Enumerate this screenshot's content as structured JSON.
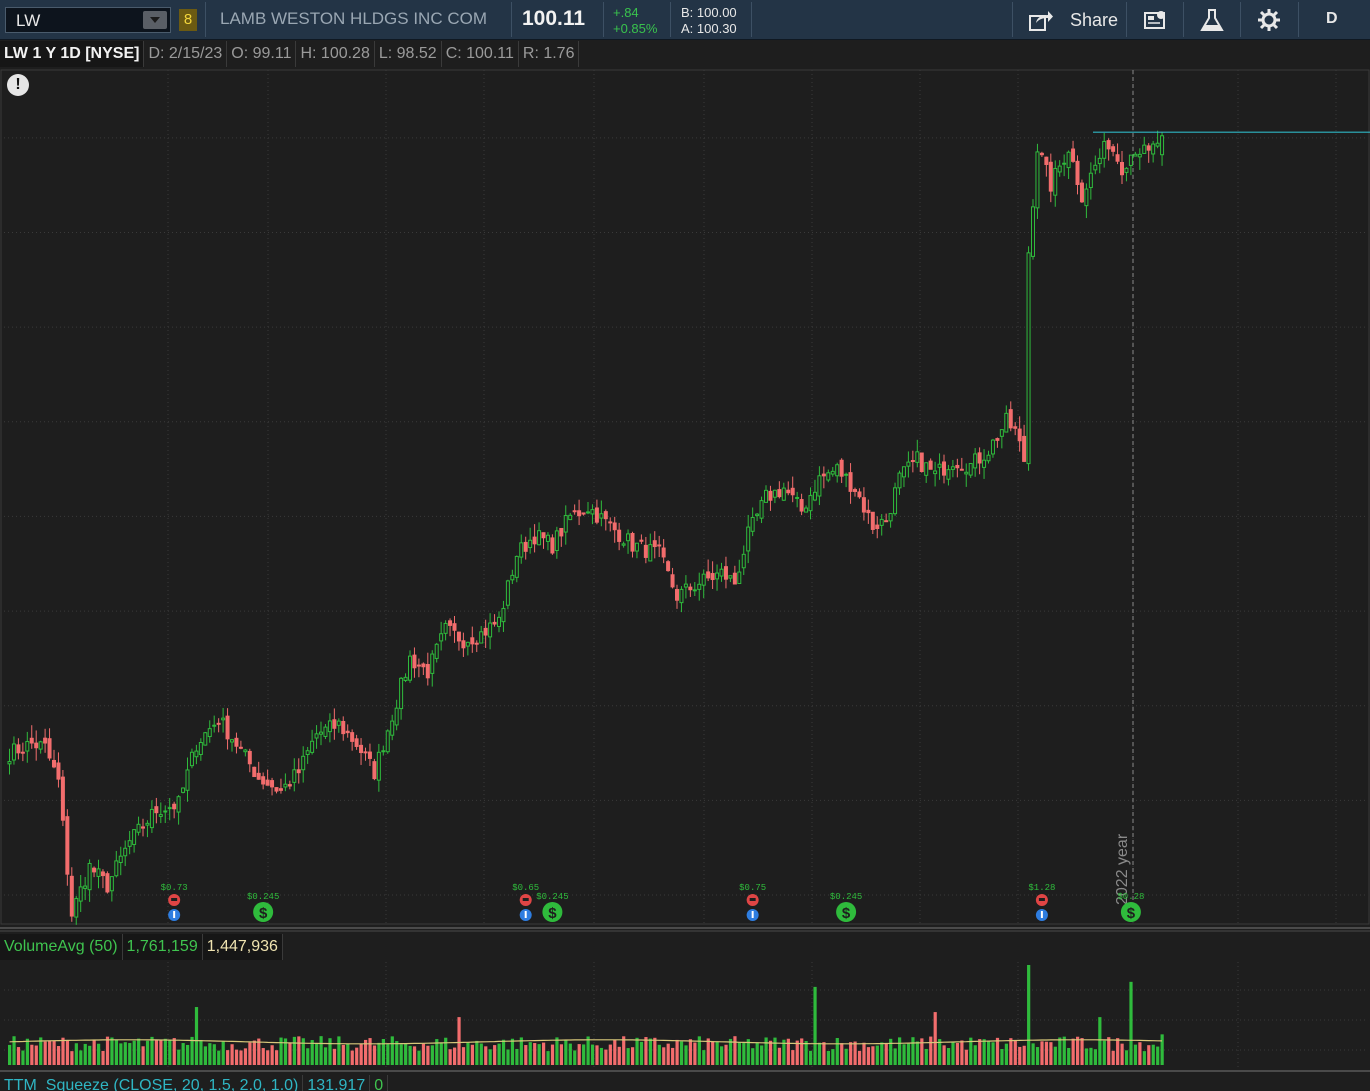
{
  "toolbar": {
    "symbol": "LW",
    "link_badge": "8",
    "company": "LAMB WESTON HLDGS INC COM",
    "last": "100.11",
    "change": "+.84",
    "change_pct": "+0.85%",
    "bid": "B: 100.00",
    "ask": "A: 100.30",
    "share_label": "Share",
    "right_label": "D",
    "icons": [
      "share-icon",
      "news-icon",
      "flask-icon",
      "gear-icon"
    ]
  },
  "info": {
    "title": "LW 1 Y 1D [NYSE]",
    "date": "D: 2/15/23",
    "open": "O: 99.11",
    "high": "H: 100.28",
    "low": "L: 98.52",
    "close": "C: 100.11",
    "range": "R: 1.76"
  },
  "colors": {
    "up": "#2fbb3c",
    "down": "#f26d6d",
    "bg": "#1e1e1e",
    "grid": "#3a3a3a",
    "hline": "#2fb6c4",
    "volavg": "#d8c87a"
  },
  "volume_study": {
    "name": "VolumeAvg (50)",
    "volume": "1,761,159",
    "avg": "1,447,936"
  },
  "ttm_study": {
    "name": "TTM_Squeeze (CLOSE, 20, 1.5, 2.0, 1.0)",
    "value": "131.917",
    "extra": "0"
  },
  "chart_data": {
    "type": "candlestick",
    "period": "1 Y",
    "interval": "1D",
    "year_marker": "2022 year",
    "horizontal_line": 100.3,
    "last_close": 100.11,
    "ylim": [
      60,
      102
    ],
    "price_key_points": [
      {
        "day": 0,
        "close": 67.5
      },
      {
        "day": 5,
        "close": 68.0
      },
      {
        "day": 8,
        "close": 67.8
      },
      {
        "day": 11,
        "close": 66.0
      },
      {
        "day": 14,
        "close": 59.0
      },
      {
        "day": 18,
        "close": 61.5
      },
      {
        "day": 22,
        "close": 60.5
      },
      {
        "day": 27,
        "close": 62.8
      },
      {
        "day": 33,
        "close": 64.5
      },
      {
        "day": 38,
        "close": 64.8
      },
      {
        "day": 42,
        "close": 68.0
      },
      {
        "day": 47,
        "close": 69.3
      },
      {
        "day": 51,
        "close": 68.0
      },
      {
        "day": 56,
        "close": 66.2
      },
      {
        "day": 61,
        "close": 65.5
      },
      {
        "day": 65,
        "close": 66.5
      },
      {
        "day": 69,
        "close": 68.5
      },
      {
        "day": 74,
        "close": 69.0
      },
      {
        "day": 78,
        "close": 68.0
      },
      {
        "day": 82,
        "close": 66.5
      },
      {
        "day": 86,
        "close": 69.5
      },
      {
        "day": 90,
        "close": 72.5
      },
      {
        "day": 94,
        "close": 71.8
      },
      {
        "day": 98,
        "close": 74.0
      },
      {
        "day": 102,
        "close": 73.5
      },
      {
        "day": 106,
        "close": 73.8
      },
      {
        "day": 110,
        "close": 74.5
      },
      {
        "day": 114,
        "close": 78.0
      },
      {
        "day": 118,
        "close": 79.0
      },
      {
        "day": 122,
        "close": 78.5
      },
      {
        "day": 126,
        "close": 80.0
      },
      {
        "day": 130,
        "close": 80.5
      },
      {
        "day": 135,
        "close": 79.5
      },
      {
        "day": 140,
        "close": 78.5
      },
      {
        "day": 146,
        "close": 78.0
      },
      {
        "day": 150,
        "close": 75.8
      },
      {
        "day": 155,
        "close": 76.5
      },
      {
        "day": 160,
        "close": 77.0
      },
      {
        "day": 163,
        "close": 76.5
      },
      {
        "day": 166,
        "close": 79.0
      },
      {
        "day": 170,
        "close": 81.0
      },
      {
        "day": 174,
        "close": 81.5
      },
      {
        "day": 178,
        "close": 80.3
      },
      {
        "day": 182,
        "close": 82.0
      },
      {
        "day": 186,
        "close": 82.5
      },
      {
        "day": 190,
        "close": 81.5
      },
      {
        "day": 194,
        "close": 79.5
      },
      {
        "day": 197,
        "close": 79.8
      },
      {
        "day": 200,
        "close": 82.0
      },
      {
        "day": 204,
        "close": 83.0
      },
      {
        "day": 208,
        "close": 82.2
      },
      {
        "day": 212,
        "close": 83.0
      },
      {
        "day": 216,
        "close": 82.7
      },
      {
        "day": 220,
        "close": 83.5
      },
      {
        "day": 224,
        "close": 85.0
      },
      {
        "day": 226,
        "close": 84.5
      },
      {
        "day": 228,
        "close": 83.0
      },
      {
        "day": 229,
        "close": 94.0
      },
      {
        "day": 231,
        "close": 99.5
      },
      {
        "day": 234,
        "close": 97.5
      },
      {
        "day": 238,
        "close": 99.5
      },
      {
        "day": 241,
        "close": 97.0
      },
      {
        "day": 244,
        "close": 98.5
      },
      {
        "day": 247,
        "close": 99.8
      },
      {
        "day": 250,
        "close": 98.5
      },
      {
        "day": 253,
        "close": 99.5
      },
      {
        "day": 256,
        "close": 99.1
      },
      {
        "day": 259,
        "close": 100.11
      }
    ],
    "events": [
      {
        "kind": "earnings",
        "label": "$0.73",
        "day": 37
      },
      {
        "kind": "dividend",
        "label": "$0.245",
        "day": 57
      },
      {
        "kind": "earnings",
        "label": "$0.65",
        "day": 116
      },
      {
        "kind": "dividend",
        "label": "$0.245",
        "day": 122
      },
      {
        "kind": "earnings",
        "label": "$0.75",
        "day": 167
      },
      {
        "kind": "dividend",
        "label": "$0.245",
        "day": 188
      },
      {
        "kind": "earnings",
        "label": "$1.28",
        "day": 232
      },
      {
        "kind": "dividend",
        "label": "$0.28",
        "day": 252
      }
    ],
    "volume_avg": 1447936,
    "last_volume": 1761159
  }
}
